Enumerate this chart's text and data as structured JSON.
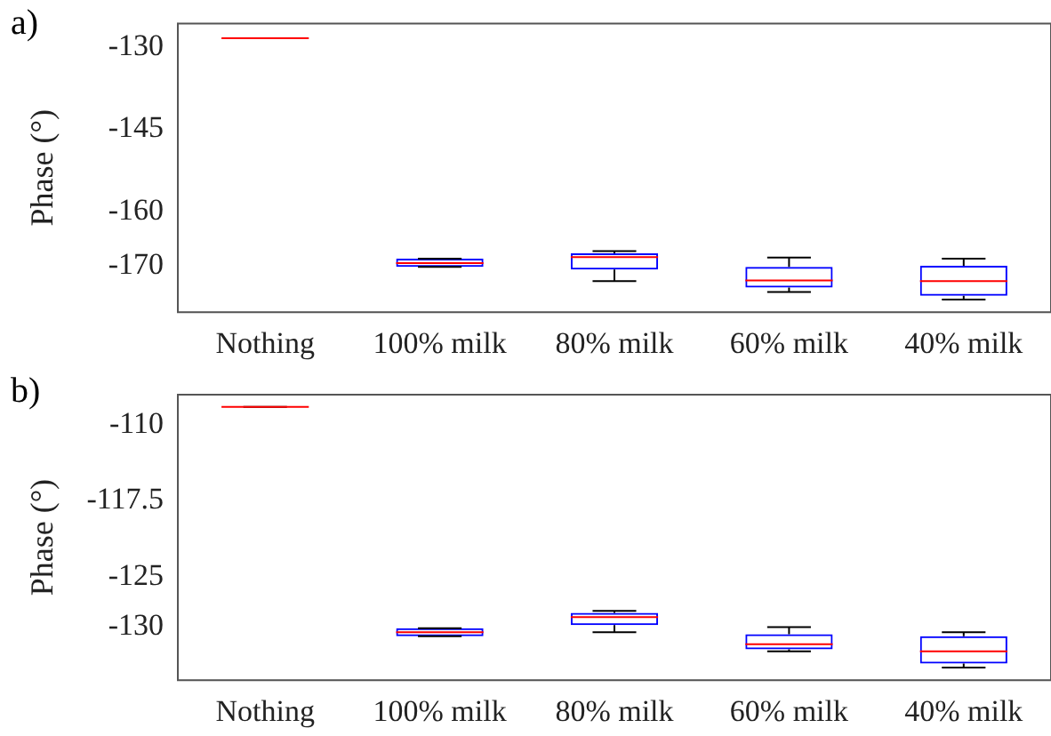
{
  "chart_data": [
    {
      "type": "box",
      "annotations": [
        "a)"
      ],
      "ylabel": "Phase (°)",
      "categories": [
        "Nothing",
        "100% milk",
        "80% milk",
        "60% milk",
        "40% milk"
      ],
      "ylim": [
        -178.5,
        -125.6
      ],
      "yticks": [
        -130,
        -145,
        -160,
        -170
      ],
      "grid": false,
      "legend": false,
      "boxes": [
        {
          "low": -128.3,
          "q1": -128.3,
          "median": -128.3,
          "q3": -128.3,
          "high": -128.3
        },
        {
          "low": -170.2,
          "q1": -170.2,
          "median": -169.5,
          "q3": -168.7,
          "high": -168.7
        },
        {
          "low": -172.8,
          "q1": -170.7,
          "median": -168.4,
          "q3": -167.7,
          "high": -167.3
        },
        {
          "low": -174.8,
          "q1": -174.0,
          "median": -172.7,
          "q3": -170.2,
          "high": -168.5
        },
        {
          "low": -176.2,
          "q1": -175.5,
          "median": -172.8,
          "q3": -170.0,
          "high": -168.7
        }
      ]
    },
    {
      "type": "box",
      "annotations": [
        "b)"
      ],
      "ylabel": "Phase (°)",
      "categories": [
        "Nothing",
        "100% milk",
        "80% milk",
        "60% milk",
        "40% milk"
      ],
      "ylim": [
        -135.25,
        -107.0
      ],
      "yticks": [
        -110,
        -117.5,
        -125,
        -130
      ],
      "grid": false,
      "legend": false,
      "boxes": [
        {
          "low": -108.2,
          "q1": -108.2,
          "median": -108.2,
          "q3": -108.2,
          "high": -108.2
        },
        {
          "low": -130.9,
          "q1": -130.9,
          "median": -130.5,
          "q3": -130.1,
          "high": -130.1
        },
        {
          "low": -130.5,
          "q1": -129.8,
          "median": -129.0,
          "q3": -128.6,
          "high": -128.4
        },
        {
          "low": -132.4,
          "q1": -132.2,
          "median": -131.7,
          "q3": -130.7,
          "high": -130.0
        },
        {
          "low": -134.0,
          "q1": -133.6,
          "median": -132.4,
          "q3": -130.9,
          "high": -130.5
        }
      ]
    }
  ]
}
